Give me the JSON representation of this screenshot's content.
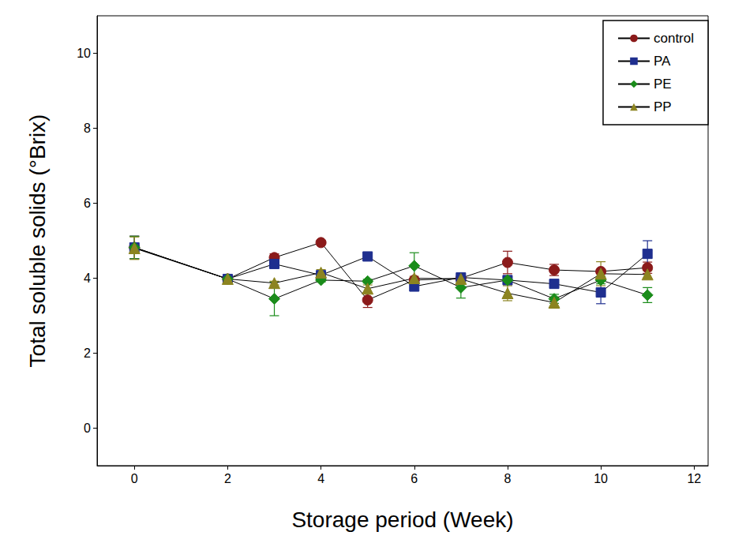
{
  "chart_data": {
    "type": "line",
    "x_label": "Storage period (Week)",
    "y_label": "Total soluble solids (°Brix)",
    "x": [
      0,
      2,
      3,
      4,
      5,
      6,
      7,
      8,
      9,
      10,
      11
    ],
    "xlim": [
      -0.8,
      12.3
    ],
    "xticks": [
      0,
      2,
      4,
      6,
      8,
      10,
      12
    ],
    "ylim": [
      -1,
      11
    ],
    "yticks": [
      0,
      2,
      4,
      6,
      8,
      10
    ],
    "grid": false,
    "legend": "top-right",
    "series": [
      {
        "name": "control",
        "color": "#8b1a1a",
        "marker": "circle",
        "values": [
          4.82,
          3.98,
          4.55,
          4.95,
          3.42,
          3.95,
          4.0,
          4.42,
          4.22,
          4.18,
          4.28
        ],
        "errors": [
          0.3,
          0.05,
          0.1,
          0.04,
          0.2,
          0.05,
          0.05,
          0.3,
          0.15,
          0.05,
          0.15
        ]
      },
      {
        "name": "PA",
        "color": "#1f2f8f",
        "marker": "square",
        "values": [
          4.82,
          3.98,
          4.38,
          4.08,
          4.58,
          3.78,
          4.02,
          3.95,
          3.85,
          3.62,
          4.65
        ],
        "errors": [
          0.3,
          0.05,
          0.1,
          0.05,
          0.08,
          0.12,
          0.08,
          0.1,
          0.1,
          0.3,
          0.35
        ]
      },
      {
        "name": "PE",
        "color": "#1a8c1a",
        "marker": "diamond",
        "values": [
          4.82,
          3.98,
          3.45,
          3.95,
          3.92,
          4.33,
          3.75,
          3.95,
          3.45,
          3.95,
          3.55
        ],
        "errors": [
          0.3,
          0.08,
          0.45,
          0.05,
          0.05,
          0.35,
          0.28,
          0.08,
          0.12,
          0.1,
          0.2
        ]
      },
      {
        "name": "PP",
        "color": "#8c8420",
        "marker": "triangle",
        "values": [
          4.8,
          3.98,
          3.87,
          4.15,
          3.72,
          4.0,
          3.98,
          3.6,
          3.35,
          4.12,
          4.1
        ],
        "errors": [
          0.3,
          0.08,
          0.05,
          0.08,
          0.1,
          0.05,
          0.05,
          0.2,
          0.15,
          0.32,
          0.1
        ]
      }
    ]
  }
}
